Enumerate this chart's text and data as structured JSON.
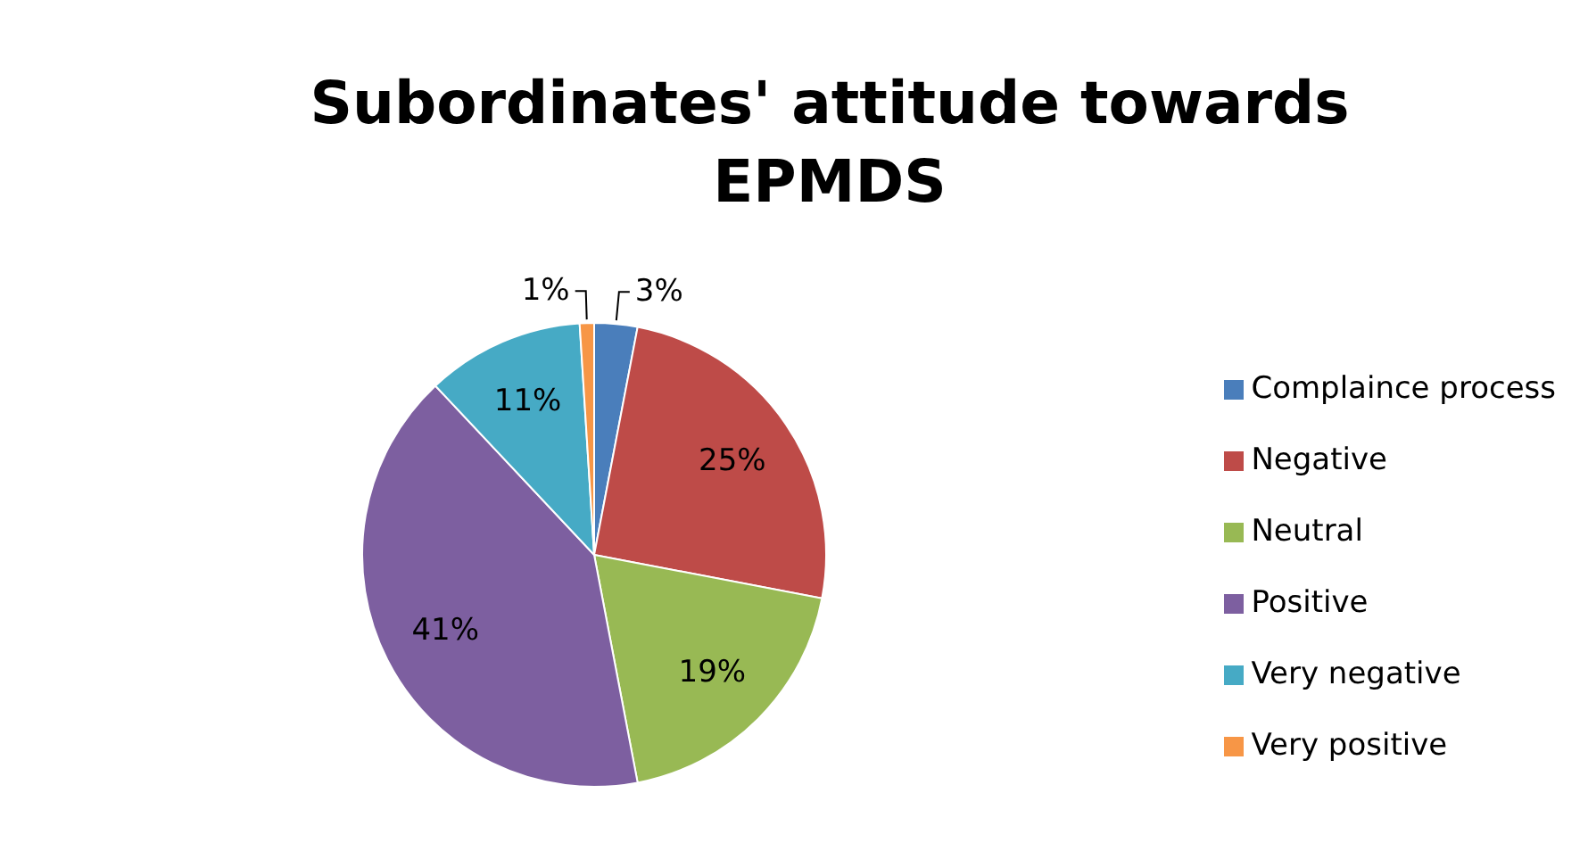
{
  "chart_data": {
    "type": "pie",
    "title": "Subordinates' attitude towards EPMDS",
    "categories": [
      "Complaince process",
      "Negative",
      "Neutral",
      "Positive",
      "Very negative",
      "Very positive"
    ],
    "values": [
      3,
      25,
      19,
      41,
      11,
      1
    ],
    "colors": [
      "#4a7ebb",
      "#be4b48",
      "#98b954",
      "#7d5fa0",
      "#46aac5",
      "#f79646"
    ],
    "value_labels": [
      "3%",
      "25%",
      "19%",
      "41%",
      "11%",
      "1%"
    ],
    "legend": "right"
  }
}
